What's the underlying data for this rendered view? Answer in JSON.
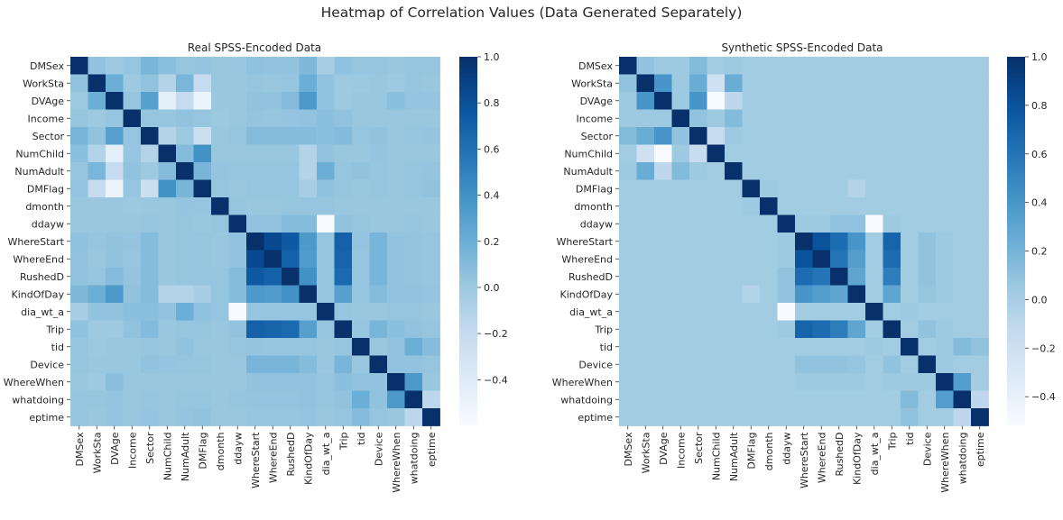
{
  "figure": {
    "title": "Heatmap of Correlation Values (Data Generated Separately)"
  },
  "chart_data": [
    {
      "type": "heatmap",
      "title": "Real SPSS-Encoded Data",
      "labels": [
        "DMSex",
        "WorkSta",
        "DVAge",
        "Income",
        "Sector",
        "NumChild",
        "NumAdult",
        "DMFlag",
        "dmonth",
        "ddayw",
        "WhereStart",
        "WhereEnd",
        "RushedD",
        "KindOfDay",
        "dia_wt_a",
        "Trip",
        "tid",
        "Device",
        "WhereWhen",
        "whatdoing",
        "eptime"
      ],
      "colorbar": {
        "min": -0.6,
        "max": 1.0,
        "ticks": [
          1.0,
          0.8,
          0.6,
          0.4,
          0.2,
          0.0,
          -0.2,
          -0.4
        ],
        "tick_labels": [
          "1.0",
          "0.8",
          "0.6",
          "0.4",
          "0.2",
          "0.0",
          "−0.2",
          "−0.4"
        ],
        "colormap": "Blues"
      },
      "matrix": [
        [
          1.0,
          0.05,
          0.0,
          0.03,
          0.15,
          0.08,
          0.03,
          0.04,
          0.02,
          0.02,
          0.06,
          0.05,
          0.05,
          0.12,
          -0.05,
          0.06,
          0.03,
          0.03,
          0.02,
          0.03,
          0.03
        ],
        [
          0.05,
          1.0,
          0.2,
          0.0,
          0.05,
          -0.1,
          0.14,
          -0.2,
          0.02,
          0.02,
          0.03,
          0.02,
          0.03,
          0.2,
          0.05,
          0.0,
          0.01,
          0.02,
          0.0,
          0.03,
          0.02
        ],
        [
          0.0,
          0.2,
          1.0,
          0.03,
          0.3,
          -0.45,
          -0.2,
          -0.5,
          0.02,
          0.02,
          0.05,
          0.05,
          0.1,
          0.35,
          0.05,
          0.0,
          0.02,
          0.02,
          0.08,
          0.04,
          0.04
        ],
        [
          0.03,
          0.0,
          0.03,
          1.0,
          0.03,
          0.03,
          0.05,
          0.03,
          0.01,
          0.02,
          0.04,
          0.03,
          0.04,
          0.05,
          0.08,
          0.05,
          0.02,
          0.02,
          0.02,
          0.02,
          0.02
        ],
        [
          0.15,
          0.05,
          0.3,
          0.03,
          1.0,
          -0.1,
          0.0,
          -0.25,
          0.02,
          0.03,
          0.1,
          0.1,
          0.1,
          0.1,
          0.08,
          0.11,
          0.03,
          0.05,
          0.02,
          0.03,
          0.04
        ],
        [
          0.08,
          -0.1,
          -0.45,
          0.03,
          -0.1,
          1.0,
          0.1,
          0.4,
          0.02,
          0.02,
          0.02,
          0.02,
          0.02,
          -0.1,
          0.05,
          0.02,
          0.02,
          0.04,
          0.02,
          0.02,
          0.02
        ],
        [
          0.03,
          0.14,
          -0.2,
          0.05,
          0.0,
          0.1,
          1.0,
          0.15,
          0.04,
          0.03,
          0.03,
          0.03,
          0.03,
          -0.1,
          0.2,
          0.03,
          0.05,
          0.03,
          0.02,
          0.03,
          0.04
        ],
        [
          0.04,
          -0.2,
          -0.5,
          0.03,
          -0.25,
          0.4,
          0.15,
          1.0,
          0.03,
          0.02,
          0.03,
          0.03,
          0.03,
          -0.05,
          0.06,
          0.03,
          0.02,
          0.03,
          0.02,
          0.03,
          0.05
        ],
        [
          0.02,
          0.02,
          0.02,
          0.01,
          0.02,
          0.02,
          0.04,
          0.03,
          1.0,
          0.03,
          0.02,
          0.02,
          0.03,
          0.03,
          0.03,
          0.02,
          0.02,
          0.02,
          0.02,
          0.02,
          0.02
        ],
        [
          0.02,
          0.02,
          0.02,
          0.02,
          0.03,
          0.02,
          0.03,
          0.02,
          0.03,
          1.0,
          0.05,
          0.05,
          0.1,
          0.1,
          -0.6,
          0.05,
          0.03,
          0.02,
          0.02,
          0.03,
          0.02
        ],
        [
          0.06,
          0.03,
          0.05,
          0.04,
          0.1,
          0.02,
          0.03,
          0.03,
          0.02,
          0.05,
          1.0,
          0.85,
          0.75,
          0.35,
          0.03,
          0.7,
          0.04,
          0.15,
          0.05,
          0.04,
          0.03
        ],
        [
          0.05,
          0.02,
          0.05,
          0.03,
          0.1,
          0.02,
          0.03,
          0.03,
          0.02,
          0.05,
          0.85,
          1.0,
          0.7,
          0.33,
          0.03,
          0.68,
          0.03,
          0.15,
          0.05,
          0.04,
          0.03
        ],
        [
          0.05,
          0.03,
          0.1,
          0.04,
          0.1,
          0.02,
          0.03,
          0.03,
          0.03,
          0.1,
          0.75,
          0.7,
          1.0,
          0.4,
          0.03,
          0.65,
          0.03,
          0.15,
          0.05,
          0.04,
          0.03
        ],
        [
          0.12,
          0.2,
          0.35,
          0.05,
          0.1,
          -0.1,
          -0.1,
          -0.05,
          0.03,
          0.1,
          0.35,
          0.33,
          0.4,
          1.0,
          0.03,
          0.3,
          0.03,
          0.1,
          0.05,
          0.05,
          0.04
        ],
        [
          -0.05,
          0.05,
          0.05,
          0.08,
          0.08,
          0.05,
          0.2,
          0.06,
          0.03,
          -0.6,
          0.03,
          0.03,
          0.03,
          0.03,
          1.0,
          0.03,
          0.02,
          0.02,
          0.03,
          0.03,
          0.02
        ],
        [
          0.06,
          0.0,
          0.0,
          0.05,
          0.11,
          0.02,
          0.03,
          0.03,
          0.02,
          0.05,
          0.7,
          0.68,
          0.65,
          0.3,
          0.03,
          1.0,
          0.03,
          0.15,
          0.08,
          0.05,
          0.03
        ],
        [
          0.03,
          0.01,
          0.02,
          0.02,
          0.03,
          0.02,
          0.05,
          0.02,
          0.02,
          0.03,
          0.04,
          0.03,
          0.03,
          0.03,
          0.02,
          0.03,
          1.0,
          0.02,
          0.05,
          0.2,
          0.1
        ],
        [
          0.03,
          0.02,
          0.02,
          0.02,
          0.05,
          0.04,
          0.03,
          0.03,
          0.02,
          0.02,
          0.15,
          0.15,
          0.15,
          0.1,
          0.02,
          0.15,
          0.02,
          1.0,
          0.05,
          0.05,
          0.03
        ],
        [
          0.02,
          0.0,
          0.08,
          0.02,
          0.02,
          0.02,
          0.02,
          0.02,
          0.02,
          0.02,
          0.05,
          0.05,
          0.05,
          0.05,
          0.03,
          0.08,
          0.05,
          0.05,
          1.0,
          0.35,
          0.02
        ],
        [
          0.03,
          0.03,
          0.04,
          0.02,
          0.03,
          0.02,
          0.03,
          0.03,
          0.02,
          0.03,
          0.04,
          0.04,
          0.04,
          0.05,
          0.03,
          0.05,
          0.2,
          0.05,
          0.35,
          1.0,
          -0.15
        ],
        [
          0.03,
          0.02,
          0.04,
          0.02,
          0.04,
          0.02,
          0.04,
          0.05,
          0.02,
          0.02,
          0.03,
          0.03,
          0.03,
          0.04,
          0.02,
          0.03,
          0.1,
          0.03,
          0.02,
          -0.15,
          1.0
        ]
      ]
    },
    {
      "type": "heatmap",
      "title": "Synthetic SPSS-Encoded Data",
      "labels": [
        "DMSex",
        "WorkSta",
        "DVAge",
        "Income",
        "Sector",
        "NumChild",
        "NumAdult",
        "DMFlag",
        "dmonth",
        "ddayw",
        "WhereStart",
        "WhereEnd",
        "RushedD",
        "KindOfDay",
        "dia_wt_a",
        "Trip",
        "tid",
        "Device",
        "WhereWhen",
        "whatdoing",
        "eptime"
      ],
      "colorbar": {
        "min": -0.52,
        "max": 1.0,
        "ticks": [
          1.0,
          0.8,
          0.6,
          0.4,
          0.2,
          0.0,
          -0.2,
          -0.4
        ],
        "tick_labels": [
          "1.0",
          "0.8",
          "0.6",
          "0.4",
          "0.2",
          "0.0",
          "−0.2",
          "−0.4"
        ],
        "colormap": "Blues"
      },
      "matrix": [
        [
          1.0,
          0.1,
          0.05,
          0.05,
          0.15,
          0.03,
          0.05,
          0.03,
          0.03,
          0.03,
          0.03,
          0.03,
          0.03,
          0.03,
          0.03,
          0.03,
          0.03,
          0.03,
          0.03,
          0.03,
          0.03
        ],
        [
          0.1,
          1.0,
          0.4,
          0.05,
          0.25,
          -0.2,
          0.25,
          0.03,
          0.03,
          0.03,
          0.03,
          0.03,
          0.03,
          0.03,
          0.03,
          0.03,
          0.03,
          0.03,
          0.03,
          0.03,
          0.03
        ],
        [
          0.05,
          0.4,
          1.0,
          0.05,
          0.4,
          -0.52,
          -0.1,
          0.03,
          0.03,
          0.03,
          0.03,
          0.03,
          0.03,
          0.03,
          0.03,
          0.03,
          0.03,
          0.03,
          0.03,
          0.03,
          0.03
        ],
        [
          0.05,
          0.05,
          0.05,
          1.0,
          0.1,
          0.05,
          0.15,
          0.03,
          0.03,
          0.03,
          0.03,
          0.03,
          0.03,
          0.03,
          0.03,
          0.03,
          0.03,
          0.03,
          0.03,
          0.03,
          0.03
        ],
        [
          0.15,
          0.25,
          0.4,
          0.1,
          1.0,
          -0.15,
          0.05,
          0.03,
          0.03,
          0.03,
          0.03,
          0.03,
          0.03,
          0.03,
          0.03,
          0.03,
          0.03,
          0.03,
          0.03,
          0.03,
          0.03
        ],
        [
          0.03,
          -0.2,
          -0.52,
          0.05,
          -0.15,
          1.0,
          0.03,
          0.03,
          0.03,
          0.03,
          0.03,
          0.03,
          0.03,
          0.03,
          0.03,
          0.03,
          0.03,
          0.03,
          0.03,
          0.03,
          0.03
        ],
        [
          0.05,
          0.25,
          -0.1,
          0.15,
          0.05,
          0.03,
          1.0,
          0.03,
          0.03,
          0.03,
          0.03,
          0.03,
          0.03,
          0.03,
          0.03,
          0.03,
          0.03,
          0.03,
          0.03,
          0.03,
          0.03
        ],
        [
          0.03,
          0.03,
          0.03,
          0.03,
          0.03,
          0.03,
          0.03,
          1.0,
          0.05,
          0.03,
          0.03,
          0.03,
          0.03,
          -0.05,
          0.03,
          0.03,
          0.03,
          0.03,
          0.03,
          0.03,
          0.03
        ],
        [
          0.03,
          0.03,
          0.03,
          0.03,
          0.03,
          0.03,
          0.03,
          0.05,
          1.0,
          0.03,
          0.03,
          0.03,
          0.03,
          0.03,
          0.03,
          0.03,
          0.03,
          0.03,
          0.03,
          0.03,
          0.03
        ],
        [
          0.03,
          0.03,
          0.03,
          0.03,
          0.03,
          0.03,
          0.03,
          0.03,
          0.03,
          1.0,
          0.05,
          0.05,
          0.1,
          0.1,
          -0.52,
          0.05,
          0.03,
          0.03,
          0.03,
          0.03,
          0.03
        ],
        [
          0.03,
          0.03,
          0.03,
          0.03,
          0.03,
          0.03,
          0.03,
          0.03,
          0.03,
          0.05,
          1.0,
          0.8,
          0.65,
          0.4,
          0.03,
          0.7,
          0.03,
          0.1,
          0.05,
          0.03,
          0.03
        ],
        [
          0.03,
          0.03,
          0.03,
          0.03,
          0.03,
          0.03,
          0.03,
          0.03,
          0.03,
          0.05,
          0.8,
          1.0,
          0.6,
          0.35,
          0.03,
          0.65,
          0.03,
          0.1,
          0.05,
          0.03,
          0.03
        ],
        [
          0.03,
          0.03,
          0.03,
          0.03,
          0.03,
          0.03,
          0.03,
          0.03,
          0.03,
          0.1,
          0.65,
          0.6,
          1.0,
          0.3,
          0.03,
          0.55,
          0.03,
          0.1,
          0.05,
          0.03,
          0.03
        ],
        [
          0.03,
          0.03,
          0.03,
          0.03,
          0.03,
          0.03,
          0.03,
          -0.05,
          0.03,
          0.1,
          0.4,
          0.35,
          0.3,
          1.0,
          0.03,
          0.3,
          0.03,
          0.08,
          0.05,
          0.03,
          0.03
        ],
        [
          0.03,
          0.03,
          0.03,
          0.03,
          0.03,
          0.03,
          0.03,
          0.03,
          0.03,
          -0.52,
          0.03,
          0.03,
          0.03,
          0.03,
          1.0,
          0.03,
          0.05,
          0.03,
          0.03,
          0.03,
          0.03
        ],
        [
          0.03,
          0.03,
          0.03,
          0.03,
          0.03,
          0.03,
          0.03,
          0.03,
          0.03,
          0.05,
          0.7,
          0.65,
          0.55,
          0.3,
          0.03,
          1.0,
          0.03,
          0.1,
          0.05,
          0.03,
          0.03
        ],
        [
          0.03,
          0.03,
          0.03,
          0.03,
          0.03,
          0.03,
          0.03,
          0.03,
          0.03,
          0.03,
          0.03,
          0.03,
          0.03,
          0.03,
          0.05,
          0.03,
          1.0,
          0.03,
          0.05,
          0.15,
          0.1
        ],
        [
          0.03,
          0.03,
          0.03,
          0.03,
          0.03,
          0.03,
          0.03,
          0.03,
          0.03,
          0.03,
          0.1,
          0.1,
          0.1,
          0.08,
          0.03,
          0.1,
          0.03,
          1.0,
          0.05,
          0.03,
          0.03
        ],
        [
          0.03,
          0.03,
          0.03,
          0.03,
          0.03,
          0.03,
          0.03,
          0.03,
          0.03,
          0.03,
          0.05,
          0.05,
          0.05,
          0.05,
          0.03,
          0.05,
          0.05,
          0.05,
          1.0,
          0.35,
          0.03
        ],
        [
          0.03,
          0.03,
          0.03,
          0.03,
          0.03,
          0.03,
          0.03,
          0.03,
          0.03,
          0.03,
          0.03,
          0.03,
          0.03,
          0.03,
          0.03,
          0.03,
          0.15,
          0.03,
          0.35,
          1.0,
          -0.1
        ],
        [
          0.03,
          0.03,
          0.03,
          0.03,
          0.03,
          0.03,
          0.03,
          0.03,
          0.03,
          0.03,
          0.03,
          0.03,
          0.03,
          0.03,
          0.03,
          0.03,
          0.1,
          0.03,
          0.03,
          -0.1,
          1.0
        ]
      ]
    }
  ]
}
